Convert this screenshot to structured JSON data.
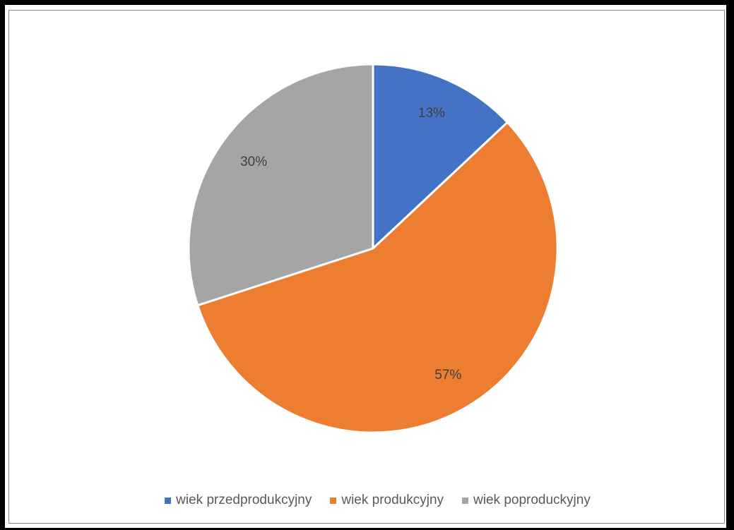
{
  "chart_data": {
    "type": "pie",
    "title": "",
    "categories": [
      "wiek przedprodukcyjny",
      "wiek produkcyjny",
      "wiek poproduckyjny"
    ],
    "values": [
      13,
      57,
      30
    ],
    "labels": [
      "13%",
      "57%",
      "30%"
    ],
    "colors": [
      "#4472C4",
      "#ED7D31",
      "#A5A5A5"
    ],
    "legend_position": "bottom",
    "start_angle": "12 o'clock, clockwise"
  }
}
